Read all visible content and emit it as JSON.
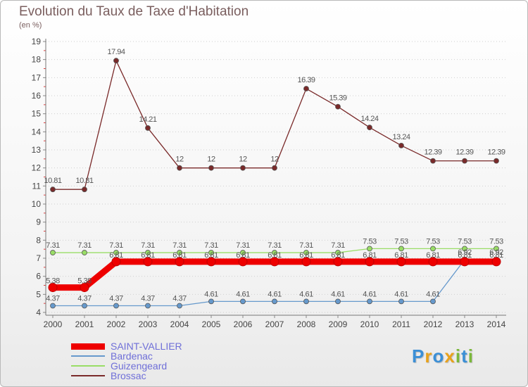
{
  "chart_data": {
    "type": "line",
    "title": "Evolution du Taux de Taxe d'Habitation",
    "subtitle": "(en %)",
    "x": [
      "2000",
      "2001",
      "2002",
      "2003",
      "2004",
      "2005",
      "2006",
      "2007",
      "2008",
      "2009",
      "2010",
      "2011",
      "2012",
      "2013",
      "2014"
    ],
    "ylim": [
      4,
      19
    ],
    "yticks": [
      4,
      5,
      6,
      7,
      8,
      9,
      10,
      11,
      12,
      13,
      14,
      15,
      16,
      17,
      18,
      19
    ],
    "grid": "horizontal dotted",
    "legend_position": "bottom-left",
    "series": [
      {
        "name": "SAINT-VALLIER",
        "color": "#ee0000",
        "values": [
          5.38,
          5.38,
          6.81,
          6.81,
          6.81,
          6.81,
          6.81,
          6.81,
          6.81,
          6.81,
          6.81,
          6.81,
          6.81,
          6.81,
          6.81
        ],
        "labels": [
          "5.38",
          "5.38",
          "6.81",
          "6.81",
          "6.81",
          "6.81",
          "6.81",
          "6.81",
          "6.81",
          "6.81",
          "6.81",
          "6.81",
          "6.81",
          "6.81",
          "6.81"
        ]
      },
      {
        "name": "Bardenac",
        "color": "#6699cc",
        "values": [
          4.37,
          4.37,
          4.37,
          4.37,
          4.37,
          4.61,
          4.61,
          4.61,
          4.61,
          4.61,
          4.61,
          4.61,
          4.61,
          6.92,
          6.92
        ],
        "labels": [
          "4.37",
          "4.37",
          "4.37",
          "4.37",
          "4.37",
          "4.61",
          "4.61",
          "4.61",
          "4.61",
          "4.61",
          "4.61",
          "4.61",
          "4.61",
          "6.92",
          "6.92"
        ]
      },
      {
        "name": "Guizengeard",
        "color": "#99dd66",
        "values": [
          7.31,
          7.31,
          7.31,
          7.31,
          7.31,
          7.31,
          7.31,
          7.31,
          7.31,
          7.31,
          7.53,
          7.53,
          7.53,
          7.53,
          7.53
        ],
        "labels": [
          "7.31",
          "7.31",
          "7.31",
          "7.31",
          "7.31",
          "7.31",
          "7.31",
          "7.31",
          "7.31",
          "7.31",
          "7.53",
          "7.53",
          "7.53",
          "7.53",
          "7.53"
        ]
      },
      {
        "name": "Brossac",
        "color": "#7a2a2a",
        "values": [
          10.81,
          10.81,
          17.94,
          14.21,
          12,
          12,
          12,
          12,
          16.39,
          15.39,
          14.24,
          13.24,
          12.39,
          12.39,
          12.39
        ],
        "labels": [
          "10.81",
          "10.81",
          "17.94",
          "14.21",
          "12",
          "12",
          "12",
          "12",
          "16.39",
          "15.39",
          "14.24",
          "13.24",
          "12.39",
          "12.39",
          "12.39"
        ]
      }
    ]
  },
  "logo": {
    "letters": [
      "P",
      "r",
      "o",
      "x",
      "i",
      "t",
      "i"
    ],
    "colors": [
      "#3b8fd6",
      "#e8a21b",
      "#3b8fd6",
      "#e8a21b",
      "#7ab83a",
      "#3b8fd6",
      "#7ab83a"
    ]
  }
}
